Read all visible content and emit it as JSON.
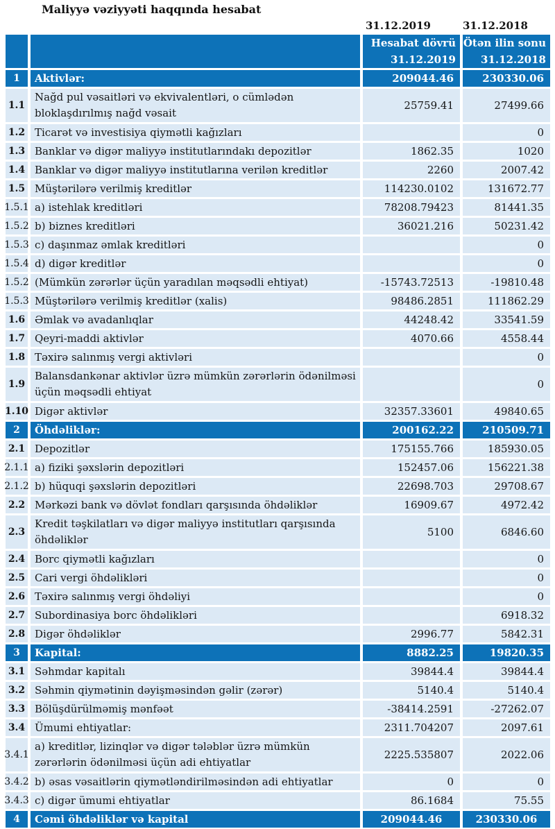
{
  "title": "Maliyyə vəziyyəti haqqında hesabat",
  "dates_above": {
    "period_2019": "31.12.2019",
    "period_2018": "31.12.2018"
  },
  "colors": {
    "section_blue": "#0d72b8",
    "row_light_blue": "#dce9f5",
    "section_text": "#ffffff",
    "body_text": "#151515"
  },
  "table": {
    "header": {
      "reporting_period": {
        "line1": "Hesabat dövrü",
        "line2": "31.12.2019"
      },
      "previous_year_end": {
        "line1": "Ötən ilin sonu",
        "line2": "31.12.2018"
      }
    },
    "rows": [
      {
        "num": "1",
        "label": "Aktivlər:",
        "v2019": "209044.46",
        "v2018": "230330.06",
        "type": "section"
      },
      {
        "num": "1.1",
        "label": "Nağd pul vəsaitləri və  ekvivalentləri, o cümlədən bloklaşdırılmış nağd vəsait",
        "v2019": "25759.41",
        "v2018": "27499.66",
        "type": "item",
        "tall": true
      },
      {
        "num": "1.2",
        "label": "Ticarət və investisiya qiymətli kağızları",
        "v2019": "",
        "v2018": "0",
        "type": "item"
      },
      {
        "num": "1.3",
        "label": "Banklar və digər maliyyə institutlarındakı depozitlər",
        "v2019": "1862.35",
        "v2018": "1020",
        "type": "item"
      },
      {
        "num": "1.4",
        "label": "Banklar və digər maliyyə institutlarına verilən kreditlər",
        "v2019": "2260",
        "v2018": "2007.42",
        "type": "item"
      },
      {
        "num": "1.5",
        "label": "Müştərilərə verilmiş kreditlər",
        "v2019": "114230.0102",
        "v2018": "131672.77",
        "type": "item"
      },
      {
        "num": "1.5.1",
        "label": "a) istehlak kreditləri",
        "v2019": "78208.79423",
        "v2018": "81441.35",
        "type": "sub"
      },
      {
        "num": "1.5.2",
        "label": "b) biznes kreditləri",
        "v2019": "36021.216",
        "v2018": "50231.42",
        "type": "sub"
      },
      {
        "num": "1.5.3",
        "label": "c) daşınmaz əmlak kreditləri",
        "v2019": "",
        "v2018": "0",
        "type": "sub"
      },
      {
        "num": "1.5.4",
        "label": "d) digər kreditlər",
        "v2019": "",
        "v2018": "0",
        "type": "sub"
      },
      {
        "num": "1.5.2",
        "label": "(Mümkün zərərlər üçün yaradılan məqsədli ehtiyat)",
        "v2019": "-15743.72513",
        "v2018": "-19810.48",
        "type": "sub"
      },
      {
        "num": "1.5.3",
        "label": "Müştərilərə verilmiş kreditlər (xalis)",
        "v2019": "98486.2851",
        "v2018": "111862.29",
        "type": "sub"
      },
      {
        "num": "1.6",
        "label": "Əmlak və avadanlıqlar",
        "v2019": "44248.42",
        "v2018": "33541.59",
        "type": "item"
      },
      {
        "num": "1.7",
        "label": "Qeyri-maddi aktivlər",
        "v2019": "4070.66",
        "v2018": "4558.44",
        "type": "item"
      },
      {
        "num": "1.8",
        "label": "Təxirə salınmış vergi aktivləri",
        "v2019": "",
        "v2018": "0",
        "type": "item"
      },
      {
        "num": "1.9",
        "label": "Balansdankənar aktivlər üzrə mümkün zərərlərin ödənilməsi üçün məqsədli ehtiyat",
        "v2019": "",
        "v2018": "0",
        "type": "item",
        "tall": true
      },
      {
        "num": "1.10",
        "label": "Digər aktivlər",
        "v2019": "32357.33601",
        "v2018": "49840.65",
        "type": "item"
      },
      {
        "num": "2",
        "label": "Öhdəliklər:",
        "v2019": "200162.22",
        "v2018": "210509.71",
        "type": "section"
      },
      {
        "num": "2.1",
        "label": "Depozitlər",
        "v2019": "175155.766",
        "v2018": "185930.05",
        "type": "item"
      },
      {
        "num": "2.1.1",
        "label": "a) fiziki şəxslərin depozitləri",
        "v2019": "152457.06",
        "v2018": "156221.38",
        "type": "sub"
      },
      {
        "num": "2.1.2",
        "label": "b) hüquqi şəxslərin depozitləri",
        "v2019": "22698.703",
        "v2018": "29708.67",
        "type": "sub"
      },
      {
        "num": "2.2",
        "label": "Mərkəzi bank və dövlət fondları qarşısında öhdəliklər",
        "v2019": "16909.67",
        "v2018": "4972.42",
        "type": "item"
      },
      {
        "num": "2.3",
        "label": "Kredit təşkilatları və digər maliyyə institutları qarşısında öhdəliklər",
        "v2019": "5100",
        "v2018": "6846.60",
        "type": "item",
        "tall": true
      },
      {
        "num": "2.4",
        "label": "Borc qiymətli kağızları",
        "v2019": "",
        "v2018": "0",
        "type": "item"
      },
      {
        "num": "2.5",
        "label": "Cari vergi öhdəlikləri",
        "v2019": "",
        "v2018": "0",
        "type": "item"
      },
      {
        "num": "2.6",
        "label": "Təxirə salınmış vergi öhdəliyi",
        "v2019": "",
        "v2018": "0",
        "type": "item"
      },
      {
        "num": "2.7",
        "label": "Subordinasiya borc öhdəlikləri",
        "v2019": "",
        "v2018": "6918.32",
        "type": "item"
      },
      {
        "num": "2.8",
        "label": "Digər öhdəliklər",
        "v2019": "2996.77",
        "v2018": "5842.31",
        "type": "item"
      },
      {
        "num": "3",
        "label": "Kapital:",
        "v2019": "8882.25",
        "v2018": "19820.35",
        "type": "section"
      },
      {
        "num": "3.1",
        "label": "Səhmdar kapitalı",
        "v2019": "39844.4",
        "v2018": "39844.4",
        "type": "item"
      },
      {
        "num": "3.2",
        "label": "Səhmin qiymətinin dəyişməsindən gəlir (zərər)",
        "v2019": "5140.4",
        "v2018": "5140.4",
        "type": "item"
      },
      {
        "num": "3.3",
        "label": "Bölüşdürülməmiş mənfəət",
        "v2019": "-38414.2591",
        "v2018": "-27262.07",
        "type": "item"
      },
      {
        "num": "3.4",
        "label": "Ümumi ehtiyatlar:",
        "v2019": "2311.704207",
        "v2018": "2097.61",
        "type": "item"
      },
      {
        "num": "3.4.1",
        "label": "a) kreditlər, lizinqlər və digər tələblər üzrə mümkün zərərlərin ödənilməsi üçün adi ehtiyatlar",
        "v2019": "2225.535807",
        "v2018": "2022.06",
        "type": "sub",
        "tall": true
      },
      {
        "num": "3.4.2",
        "label": "b) əsas vəsaitlərin qiymətləndirilməsindən adi ehtiyatlar",
        "v2019": "0",
        "v2018": "0",
        "type": "sub"
      },
      {
        "num": "3.4.3",
        "label": "c) digər ümumi ehtiyatlar",
        "v2019": "86.1684",
        "v2018": "75.55",
        "type": "sub"
      },
      {
        "num": "4",
        "label": "Cəmi öhdəliklər və kapital",
        "v2019": "209044.46",
        "v2018": "230330.06",
        "type": "section",
        "align": "center"
      }
    ]
  }
}
